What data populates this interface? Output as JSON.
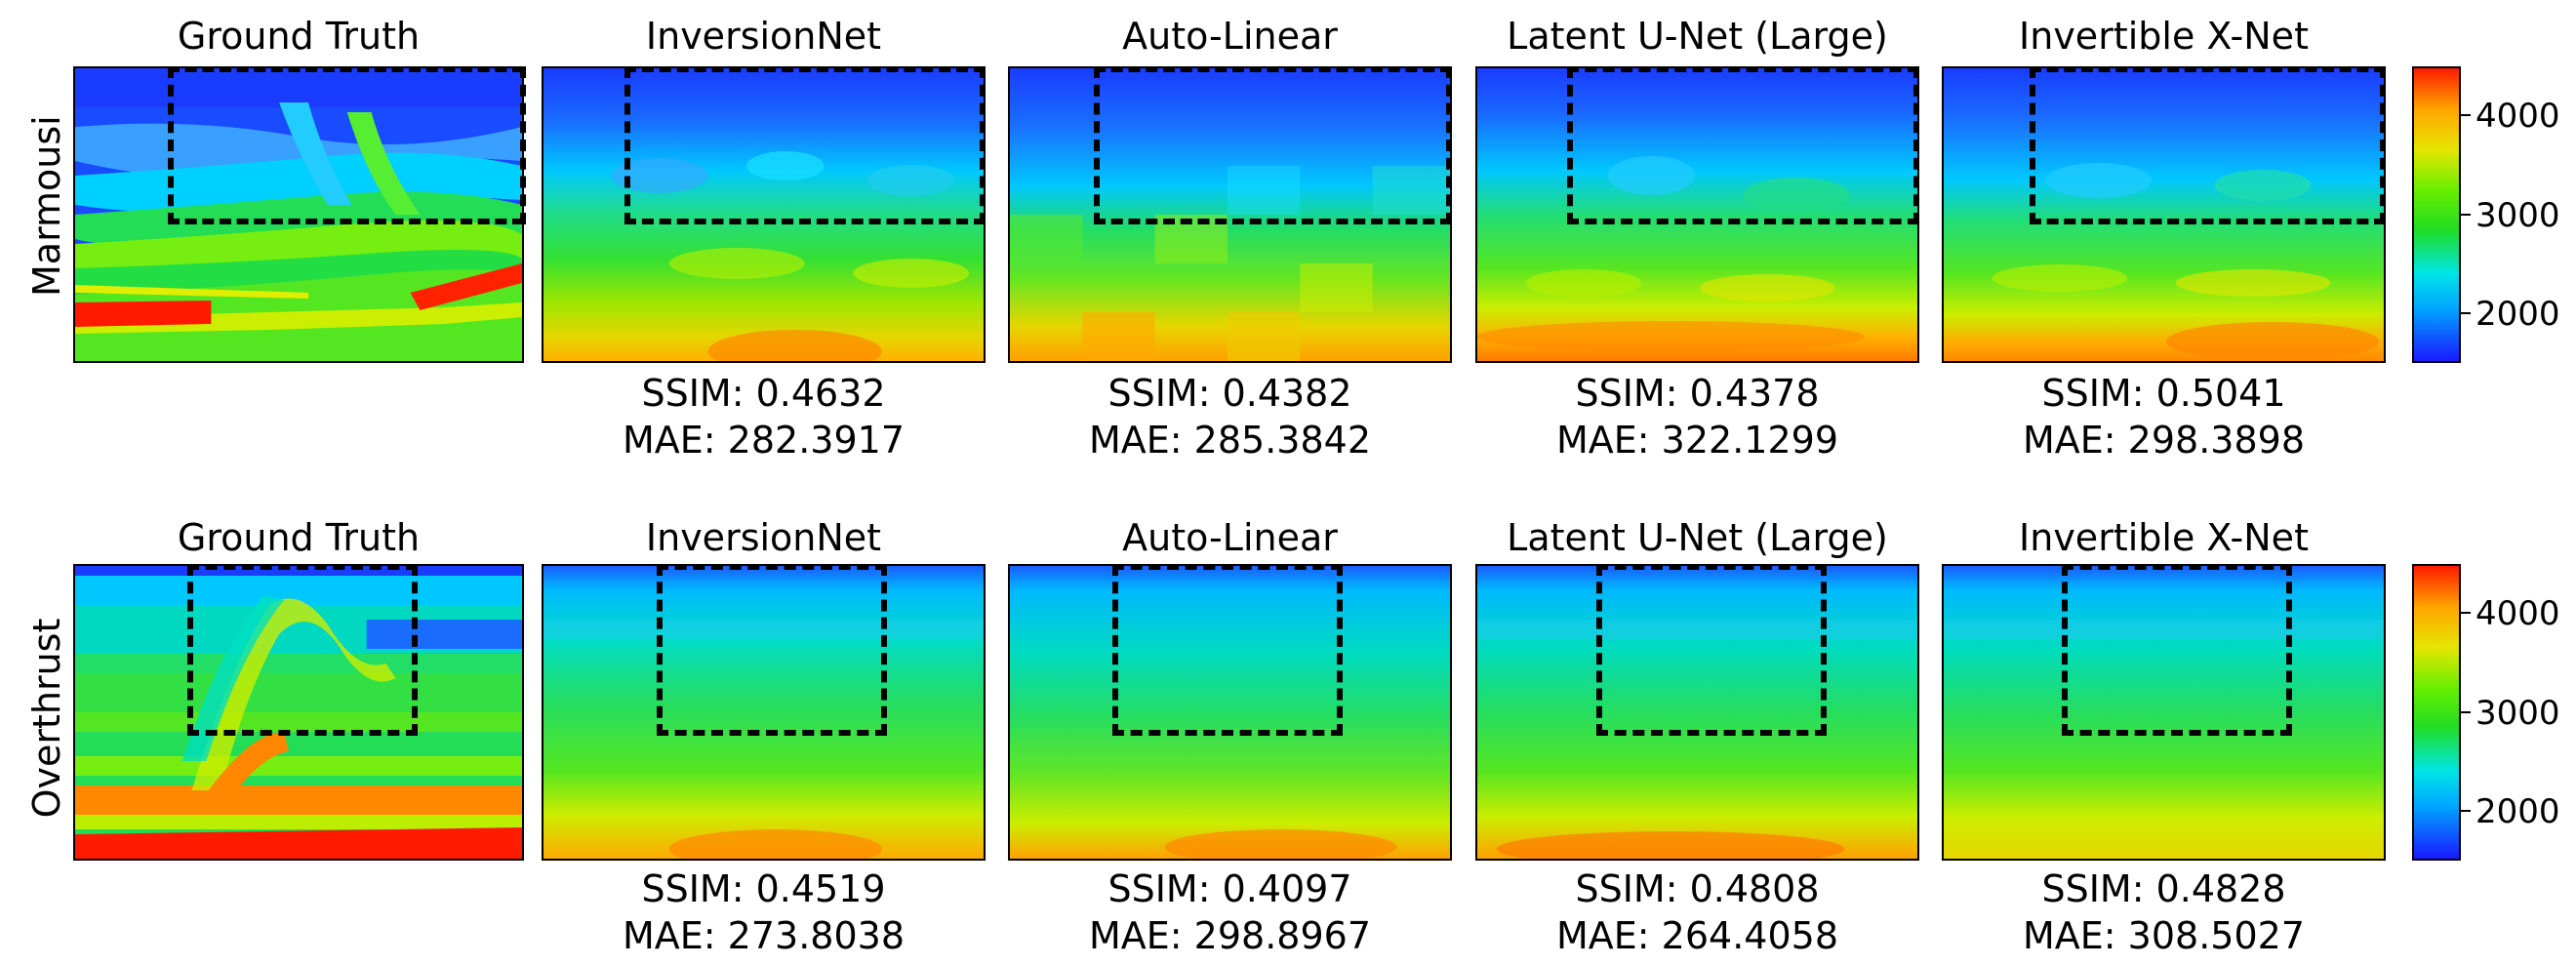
{
  "columns": [
    "Ground Truth",
    "InversionNet",
    "Auto-Linear",
    "Latent U-Net (Large)",
    "Invertible X-Net"
  ],
  "rows": [
    {
      "label": "Marmousi",
      "metrics": [
        null,
        {
          "ssim": "SSIM: 0.4632",
          "mae": "MAE: 282.3917"
        },
        {
          "ssim": "SSIM: 0.4382",
          "mae": "MAE: 285.3842"
        },
        {
          "ssim": "SSIM: 0.4378",
          "mae": "MAE: 322.1299"
        },
        {
          "ssim": "SSIM: 0.5041",
          "mae": "MAE: 298.3898"
        }
      ]
    },
    {
      "label": "Overthrust",
      "metrics": [
        null,
        {
          "ssim": "SSIM: 0.4519",
          "mae": "MAE: 273.8038"
        },
        {
          "ssim": "SSIM: 0.4097",
          "mae": "MAE: 298.8967"
        },
        {
          "ssim": "SSIM: 0.4808",
          "mae": "MAE: 264.4058"
        },
        {
          "ssim": "SSIM: 0.4828",
          "mae": "MAE: 308.5027"
        }
      ]
    }
  ],
  "colorbar": {
    "ticks": [
      "4000",
      "3000",
      "2000"
    ],
    "colors": [
      "#1a1aff",
      "#00a6ff",
      "#00e6e6",
      "#22dd22",
      "#66ee00",
      "#e6e600",
      "#ffa500",
      "#ff1a00"
    ]
  }
}
